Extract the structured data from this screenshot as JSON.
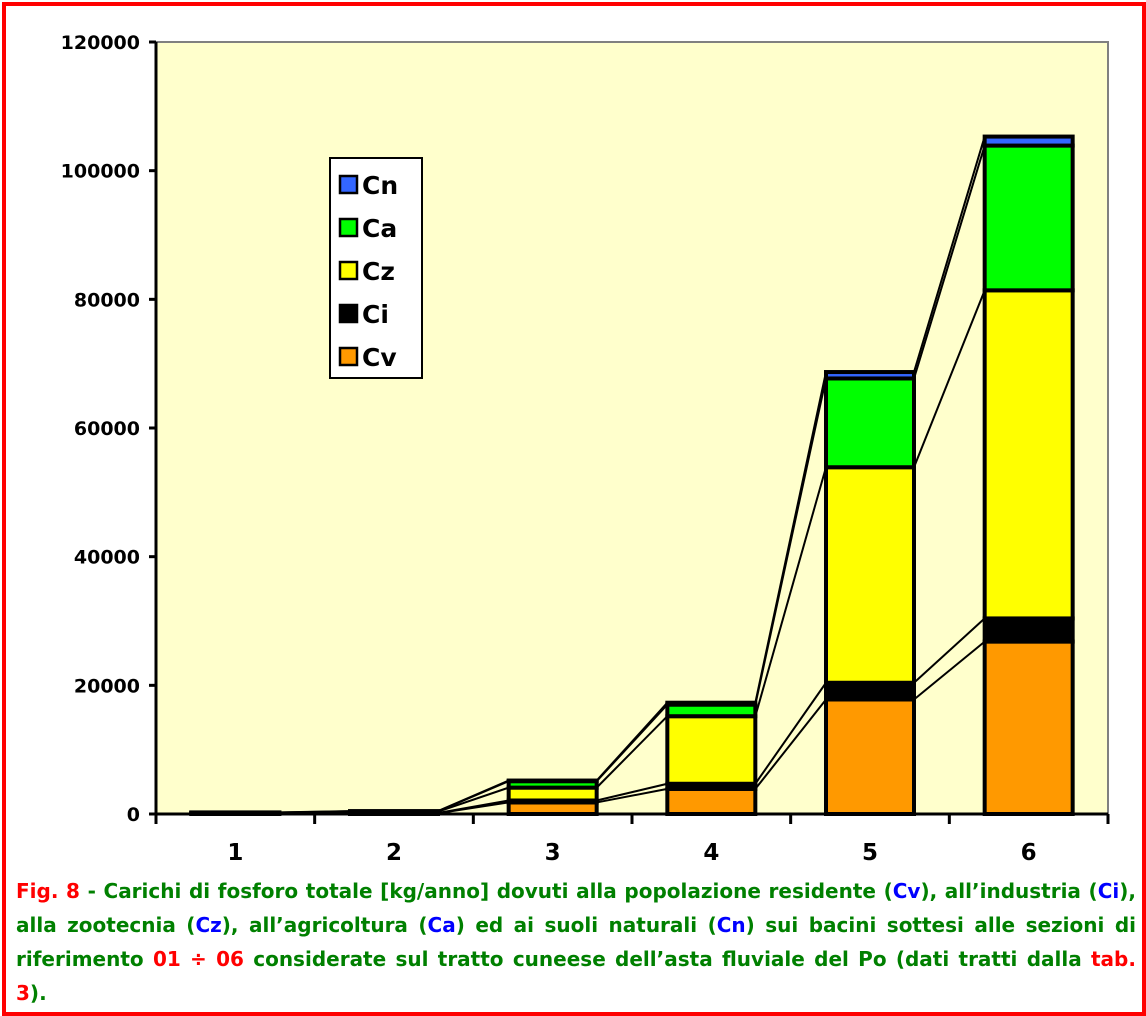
{
  "colors": {
    "plot_bg": "#ffffcc",
    "frame": "#ff0000",
    "caption_green": "#008000",
    "caption_red": "#ff0000",
    "caption_blue": "#0000ff"
  },
  "chart_data": {
    "type": "bar",
    "stacked": true,
    "title": "",
    "xlabel": "",
    "ylabel": "",
    "categories": [
      "1",
      "2",
      "3",
      "4",
      "5",
      "6"
    ],
    "ylim": [
      0,
      120000
    ],
    "yticks": [
      0,
      20000,
      40000,
      60000,
      80000,
      100000,
      120000
    ],
    "grid": false,
    "legend_position": "upper-left",
    "series_lines": true,
    "series": [
      {
        "name": "Cv",
        "color": "#ff9900",
        "values": [
          80,
          120,
          1800,
          3900,
          17800,
          26800
        ]
      },
      {
        "name": "Ci",
        "color": "#000000",
        "values": [
          20,
          40,
          300,
          800,
          2600,
          3600
        ]
      },
      {
        "name": "Cz",
        "color": "#ffff00",
        "values": [
          100,
          200,
          2000,
          10500,
          33500,
          51000
        ]
      },
      {
        "name": "Ca",
        "color": "#00ff00",
        "values": [
          30,
          60,
          1000,
          1800,
          13800,
          22500
        ]
      },
      {
        "name": "Cn",
        "color": "#3366ff",
        "values": [
          20,
          30,
          100,
          300,
          1000,
          1400
        ]
      }
    ]
  },
  "caption": {
    "fig_label": "Fig. 8",
    "parts": [
      {
        "text": " - Carichi di fosforo totale [kg/anno] dovuti alla popolazione residente (",
        "style": "green"
      },
      {
        "text": "Cv",
        "style": "blue"
      },
      {
        "text": "), all’industria (",
        "style": "green"
      },
      {
        "text": "Ci",
        "style": "blue"
      },
      {
        "text": "), alla zootecnia (",
        "style": "green"
      },
      {
        "text": "Cz",
        "style": "blue"
      },
      {
        "text": "), all’agricoltura (",
        "style": "green"
      },
      {
        "text": "Ca",
        "style": "blue"
      },
      {
        "text": ") ed ai suoli naturali (",
        "style": "green"
      },
      {
        "text": "Cn",
        "style": "blue"
      },
      {
        "text": ") sui bacini sottesi alle sezioni di riferimento ",
        "style": "green"
      },
      {
        "text": "01 ÷ 06",
        "style": "red"
      },
      {
        "text": " considerate sul tratto cuneese dell’asta fluviale del Po (dati tratti dalla ",
        "style": "green"
      },
      {
        "text": "tab. 3",
        "style": "red"
      },
      {
        "text": ").",
        "style": "green"
      }
    ]
  }
}
